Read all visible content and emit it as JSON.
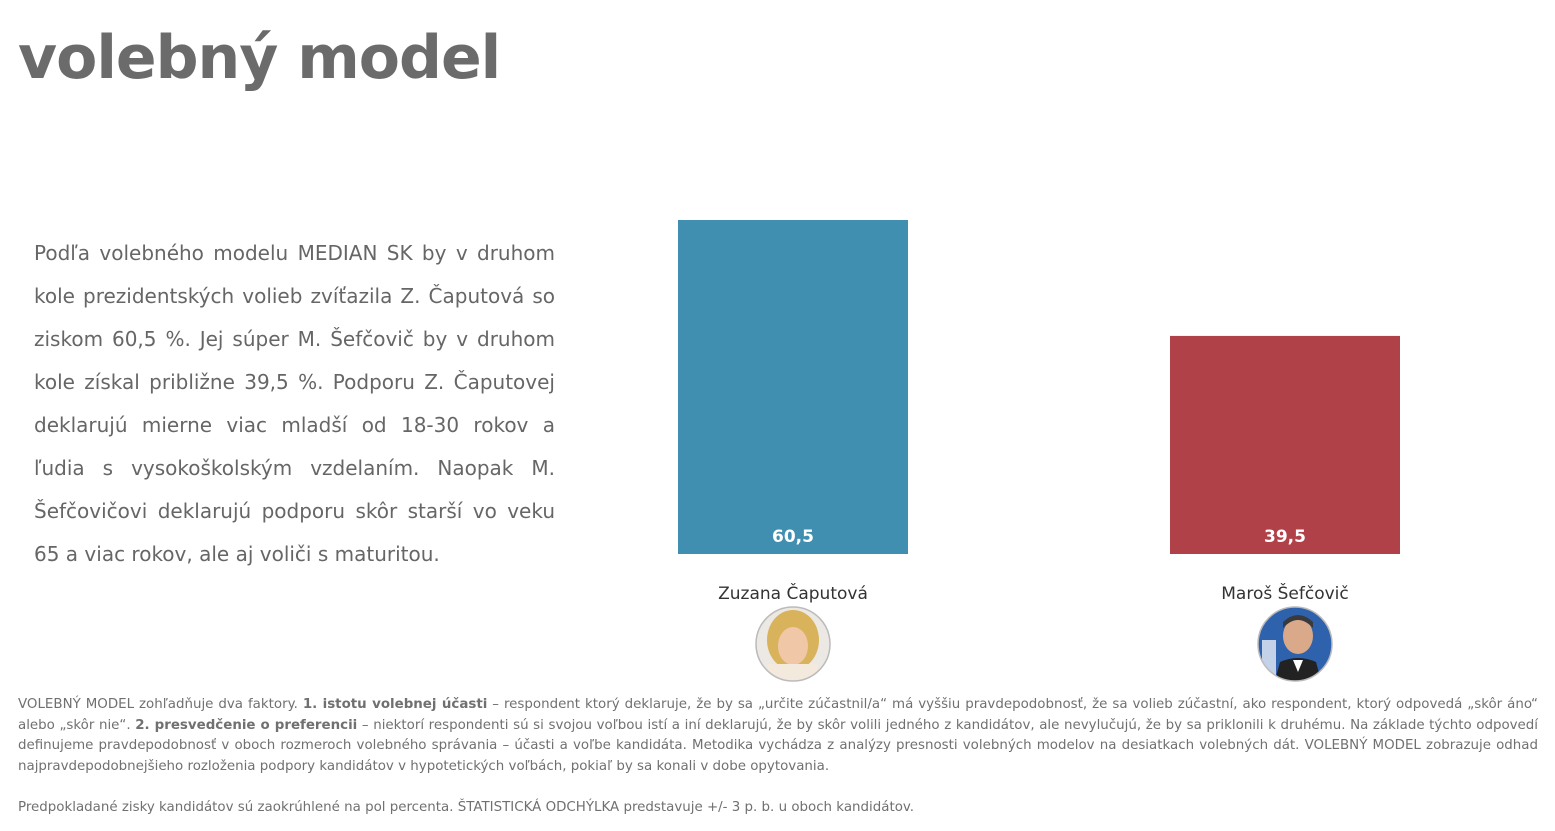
{
  "title": "volebný model",
  "description": "Podľa volebného modelu MEDIAN SK by v druhom kole prezidentských volieb zvíťazila Z. Čaputová so ziskom 60,5 %. Jej súper M. Šefčovič by v druhom kole získal približne 39,5 %. Podporu Z. Čaputovej deklarujú mierne viac mladší od 18-30 rokov a ľudia s vysokoškolským vzdelaním. Naopak M. Šefčovičovi deklarujú podporu skôr starší vo veku 65 a viac rokov, ale aj voliči s maturitou.",
  "chart_data": {
    "type": "bar",
    "title": "",
    "xlabel": "",
    "ylabel": "",
    "ylim": [
      0,
      60.5
    ],
    "grid": false,
    "categories": [
      "Zuzana Čaputová",
      "Maroš Šefčovič"
    ],
    "values": [
      60.5,
      39.5
    ],
    "value_labels": [
      "60,5",
      "39,5"
    ],
    "colors": [
      "#418fb0",
      "#b04148"
    ],
    "icons": [
      "candidate-photo-caputova",
      "candidate-photo-sefcovic"
    ]
  },
  "footnote": {
    "p1_a": "VOLEBNÝ MODEL zohľadňuje dva faktory. ",
    "p1_b1": "1. istotu volebnej účasti",
    "p1_c": " – respondent ktorý deklaruje, že by sa „určite zúčastnil/a“ má vyššiu pravdepodobnosť, že sa volieb zúčastní, ako respondent, ktorý odpovedá „skôr áno“ alebo „skôr nie“. ",
    "p1_b2": "2. presvedčenie o preferencii",
    "p1_d": " – niektorí respondenti sú si svojou voľbou istí a iní deklarujú, že by skôr volili jedného z kandidátov, ale nevylučujú, že by sa priklonili k druhému. Na základe týchto odpovedí definujeme pravdepodobnosť v oboch rozmeroch volebného správania – účasti a voľbe kandidáta. Metodika vychádza z analýzy presnosti volebných modelov na desiatkach volebných dát. VOLEBNÝ MODEL zobrazuje odhad najpravdepodobnejšieho rozloženia podpory kandidátov v hypotetických voľbách, pokiaľ by sa konali v dobe opytovania.",
    "p2": "Predpokladané zisky kandidátov sú zaokrúhlené na pol percenta. ŠTATISTICKÁ ODCHÝLKA predstavuje +/- 3 p. b. u oboch kandidátov."
  }
}
